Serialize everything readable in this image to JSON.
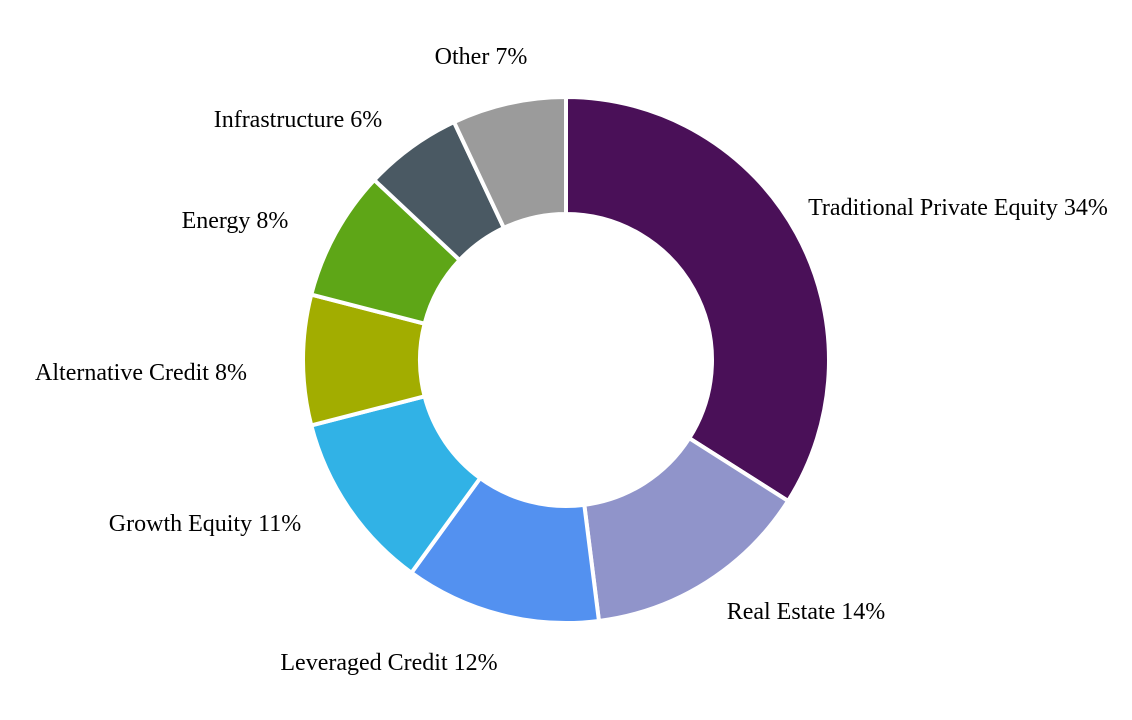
{
  "chart_data": {
    "type": "pie",
    "variant": "donut",
    "title": "",
    "slices": [
      {
        "label": "Traditional Private Equity 34%",
        "name": "Traditional Private Equity",
        "value": 34,
        "color": "#4A1058"
      },
      {
        "label": "Real Estate 14%",
        "name": "Real Estate",
        "value": 14,
        "color": "#9094CA"
      },
      {
        "label": "Leveraged Credit 12%",
        "name": "Leveraged Credit",
        "value": 12,
        "color": "#5391F0"
      },
      {
        "label": "Growth Equity 11%",
        "name": "Growth Equity",
        "value": 11,
        "color": "#31B2E6"
      },
      {
        "label": "Alternative Credit 8%",
        "name": "Alternative Credit",
        "value": 8,
        "color": "#A2AD00"
      },
      {
        "label": "Energy 8%",
        "name": "Energy",
        "value": 8,
        "color": "#5EA617"
      },
      {
        "label": "Infrastructure 6%",
        "name": "Infrastructure",
        "value": 6,
        "color": "#4A5963"
      },
      {
        "label": "Other 7%",
        "name": "Other",
        "value": 7,
        "color": "#9B9B9B"
      }
    ],
    "start_position": "top",
    "direction": "clockwise",
    "legend": "none"
  }
}
